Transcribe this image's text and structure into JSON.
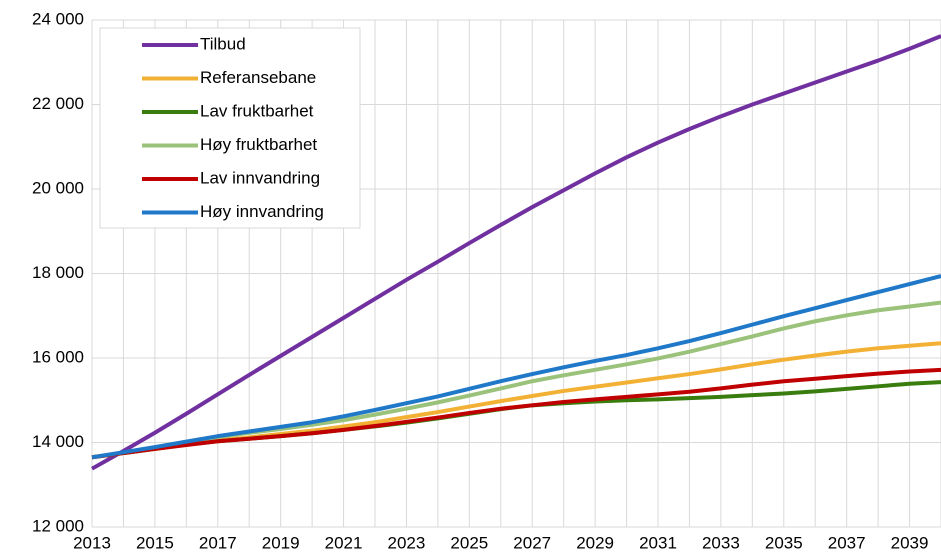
{
  "chart_data": {
    "type": "line",
    "x": [
      2013,
      2014,
      2015,
      2016,
      2017,
      2018,
      2019,
      2020,
      2021,
      2022,
      2023,
      2024,
      2025,
      2026,
      2027,
      2028,
      2029,
      2030,
      2031,
      2032,
      2033,
      2034,
      2035,
      2036,
      2037,
      2038,
      2039,
      2040
    ],
    "xlim": [
      2013,
      2040
    ],
    "xticks": [
      2013,
      2015,
      2017,
      2019,
      2021,
      2023,
      2025,
      2027,
      2029,
      2031,
      2033,
      2035,
      2037,
      2039
    ],
    "ylim": [
      12000,
      24000
    ],
    "yticks": [
      {
        "value": 12000,
        "label": "12 000"
      },
      {
        "value": 14000,
        "label": "14 000"
      },
      {
        "value": 16000,
        "label": "16 000"
      },
      {
        "value": 18000,
        "label": "18 000"
      },
      {
        "value": 20000,
        "label": "20 000"
      },
      {
        "value": 22000,
        "label": "22 000"
      },
      {
        "value": 24000,
        "label": "24 000"
      }
    ],
    "grid": true,
    "legend": "upper left",
    "series": [
      {
        "name": "Tilbud",
        "color": "#7030a0",
        "values": [
          13380,
          13800,
          14230,
          14680,
          15140,
          15600,
          16050,
          16500,
          16950,
          17400,
          17850,
          18280,
          18720,
          19150,
          19570,
          19970,
          20370,
          20750,
          21100,
          21420,
          21720,
          22000,
          22260,
          22520,
          22780,
          23040,
          23320,
          23620
        ]
      },
      {
        "name": "Referansebane",
        "color": "#f2b134",
        "values": [
          13650,
          13750,
          13850,
          13950,
          14050,
          14120,
          14200,
          14280,
          14380,
          14480,
          14600,
          14720,
          14850,
          14980,
          15100,
          15220,
          15320,
          15420,
          15520,
          15620,
          15730,
          15850,
          15960,
          16060,
          16150,
          16230,
          16290,
          16350
        ]
      },
      {
        "name": "Lav fruktbarhet",
        "color": "#3a7d0f",
        "values": [
          13650,
          13750,
          13850,
          13950,
          14030,
          14090,
          14150,
          14220,
          14300,
          14380,
          14470,
          14570,
          14680,
          14790,
          14880,
          14930,
          14970,
          15000,
          15020,
          15050,
          15080,
          15120,
          15160,
          15210,
          15270,
          15330,
          15390,
          15430
        ]
      },
      {
        "name": "Høy fruktbarhet",
        "color": "#9bc27a",
        "values": [
          13650,
          13760,
          13880,
          14000,
          14130,
          14230,
          14320,
          14420,
          14530,
          14660,
          14800,
          14950,
          15110,
          15280,
          15450,
          15590,
          15720,
          15850,
          15990,
          16150,
          16330,
          16510,
          16700,
          16870,
          17010,
          17130,
          17220,
          17310
        ]
      },
      {
        "name": "Lav innvandring",
        "color": "#c00000",
        "values": [
          13650,
          13750,
          13850,
          13940,
          14030,
          14090,
          14150,
          14220,
          14300,
          14390,
          14490,
          14590,
          14700,
          14800,
          14880,
          14960,
          15020,
          15080,
          15140,
          15200,
          15280,
          15370,
          15450,
          15510,
          15570,
          15630,
          15680,
          15720
        ]
      },
      {
        "name": "Høy innvandring",
        "color": "#1f78c8",
        "values": [
          13650,
          13770,
          13890,
          14020,
          14150,
          14260,
          14370,
          14480,
          14620,
          14770,
          14930,
          15090,
          15270,
          15450,
          15620,
          15780,
          15930,
          16070,
          16230,
          16400,
          16590,
          16790,
          16990,
          17180,
          17370,
          17560,
          17750,
          17940
        ]
      }
    ]
  }
}
